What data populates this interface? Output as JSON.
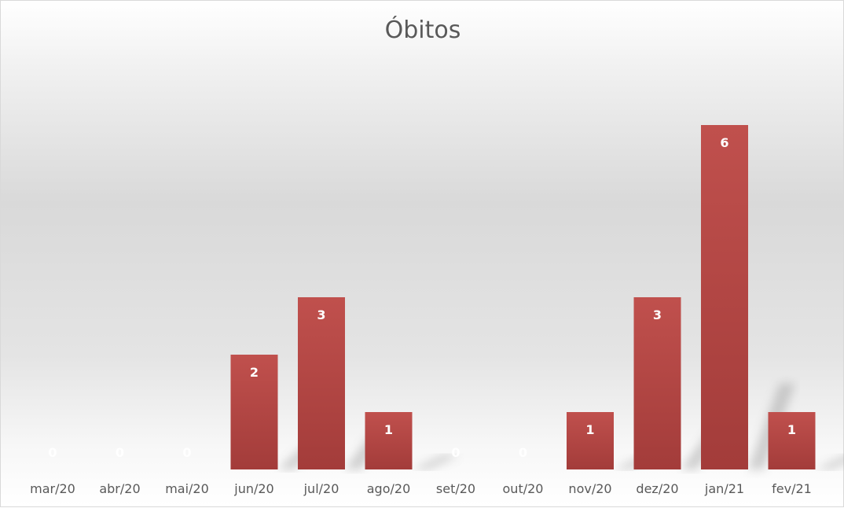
{
  "chart_data": {
    "type": "bar",
    "title": "Óbitos",
    "categories": [
      "mar/20",
      "abr/20",
      "mai/20",
      "jun/20",
      "jul/20",
      "ago/20",
      "set/20",
      "out/20",
      "nov/20",
      "dez/20",
      "jan/21",
      "fev/21"
    ],
    "values": [
      0,
      0,
      0,
      2,
      3,
      1,
      0,
      0,
      1,
      3,
      6,
      1
    ],
    "xlabel": "",
    "ylabel": "",
    "ylim": [
      0,
      6
    ],
    "grid": false,
    "legend": "none",
    "data_labels": true,
    "bar_color": "#c0504d",
    "bar_color_dark": "#a33c3a",
    "label_color": "#ffffff"
  }
}
